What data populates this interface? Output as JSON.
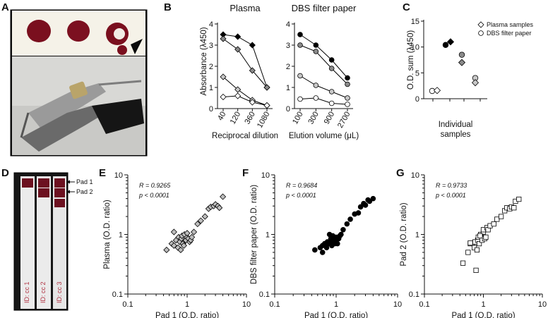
{
  "figure": {
    "panel_labels": [
      "A",
      "B",
      "C",
      "D",
      "E",
      "F",
      "G"
    ],
    "photo_a": {
      "description_icon": "dried-blood-spots-and-hole-punch-photo"
    },
    "photo_d": {
      "pad_labels": [
        "Pad 1",
        "Pad 2"
      ],
      "strip_labels": [
        "ID: cc 1",
        "ID: cc 2",
        "ID: cc 3"
      ]
    }
  },
  "chart_data": [
    {
      "id": "B-plasma",
      "type": "line",
      "title": "Plasma",
      "xlabel": "Reciprocal dilution",
      "ylabel": "Absorbance (λ450)",
      "categories": [
        "40",
        "120",
        "360",
        "1080"
      ],
      "ylim": [
        0,
        4
      ],
      "yticks": [
        "0",
        "1",
        "2",
        "3",
        "4"
      ],
      "series": [
        {
          "name": "black",
          "marker": "diamond",
          "color": "#000000",
          "values": [
            3.5,
            3.4,
            3.0,
            1.0
          ]
        },
        {
          "name": "dark grey",
          "marker": "diamond",
          "color": "#8a8a8a",
          "values": [
            3.3,
            2.8,
            1.8,
            1.0
          ]
        },
        {
          "name": "light grey",
          "marker": "diamond",
          "color": "#c8c8c8",
          "values": [
            1.5,
            0.9,
            0.4,
            0.15
          ]
        },
        {
          "name": "white",
          "marker": "diamond",
          "color": "#ffffff",
          "values": [
            0.55,
            0.6,
            0.3,
            0.15
          ]
        }
      ]
    },
    {
      "id": "B-dbs",
      "type": "line",
      "title": "DBS filter paper",
      "xlabel": "Elution volume (μL)",
      "ylabel": "",
      "categories": [
        "100",
        "300",
        "900",
        "2700"
      ],
      "ylim": [
        0,
        4
      ],
      "yticks": [
        "0",
        "1",
        "2",
        "3",
        "4"
      ],
      "series": [
        {
          "name": "black",
          "marker": "circle",
          "color": "#000000",
          "values": [
            3.5,
            3.0,
            2.3,
            1.45
          ]
        },
        {
          "name": "dark grey",
          "marker": "circle",
          "color": "#8a8a8a",
          "values": [
            3.0,
            2.7,
            1.9,
            1.15
          ]
        },
        {
          "name": "light grey",
          "marker": "circle",
          "color": "#c8c8c8",
          "values": [
            1.55,
            1.1,
            0.8,
            0.5
          ]
        },
        {
          "name": "white",
          "marker": "circle",
          "color": "#ffffff",
          "values": [
            0.45,
            0.5,
            0.25,
            0.2
          ]
        }
      ]
    },
    {
      "id": "C",
      "type": "scatter",
      "xlabel": "Individual samples",
      "ylabel": "O.D. sum (λ450)",
      "ylim": [
        0,
        15
      ],
      "yticks": [
        "0",
        "5",
        "10",
        "15"
      ],
      "legend": [
        "Plasma samples",
        "DBS filter paper"
      ],
      "samples": [
        {
          "sample": 1,
          "color": "#ffffff",
          "plasma": 1.6,
          "dbs": 1.5
        },
        {
          "sample": 2,
          "color": "#000000",
          "plasma": 11.0,
          "dbs": 10.4
        },
        {
          "sample": 3,
          "color": "#8a8a8a",
          "plasma": 7.0,
          "dbs": 8.5
        },
        {
          "sample": 4,
          "color": "#c8c8c8",
          "plasma": 3.1,
          "dbs": 4.0
        }
      ]
    },
    {
      "id": "E",
      "type": "scatter",
      "xscale": "log",
      "yscale": "log",
      "xlim": [
        0.1,
        10
      ],
      "ylim": [
        0.1,
        10
      ],
      "xticks": [
        "0.1",
        "1",
        "10"
      ],
      "yticks": [
        "0.1",
        "1",
        "10"
      ],
      "xlabel": "Pad 1 (O.D. ratio)",
      "ylabel": "Plasma (O.D. ratio)",
      "r_text": "R = 0.9265",
      "p_text": "p < 0.0001",
      "marker": "diamond",
      "color": "#bdbdbd",
      "x": [
        0.45,
        0.55,
        0.6,
        0.65,
        0.7,
        0.72,
        0.75,
        0.8,
        0.82,
        0.85,
        0.9,
        0.95,
        1.0,
        1.0,
        1.05,
        1.1,
        1.15,
        1.2,
        1.3,
        1.5,
        1.7,
        2.0,
        2.3,
        2.5,
        2.8,
        3.0,
        3.3,
        3.5,
        4.0,
        0.6,
        0.78,
        0.88
      ],
      "y": [
        0.55,
        0.7,
        0.65,
        0.8,
        0.6,
        0.9,
        0.75,
        0.85,
        0.95,
        0.7,
        1.0,
        0.8,
        0.9,
        1.05,
        0.85,
        0.75,
        0.8,
        0.9,
        1.1,
        1.5,
        1.7,
        2.0,
        2.7,
        2.9,
        3.0,
        3.2,
        3.0,
        2.8,
        4.3,
        1.1,
        0.55,
        0.65
      ]
    },
    {
      "id": "F",
      "type": "scatter",
      "xscale": "log",
      "yscale": "log",
      "xlim": [
        0.1,
        10
      ],
      "ylim": [
        0.1,
        10
      ],
      "xticks": [
        "0.1",
        "1",
        "10"
      ],
      "yticks": [
        "0.1",
        "1",
        "10"
      ],
      "xlabel": "Pad 1 (O.D. ratio)",
      "ylabel": "DBS filter paper (O.D. ratio)",
      "r_text": "R = 0.9684",
      "p_text": "p < 0.0001",
      "marker": "circle",
      "color": "#000000",
      "x": [
        0.45,
        0.55,
        0.6,
        0.65,
        0.7,
        0.72,
        0.75,
        0.8,
        0.82,
        0.85,
        0.9,
        0.95,
        1.0,
        1.0,
        1.05,
        1.1,
        1.15,
        1.2,
        1.3,
        1.5,
        1.7,
        2.0,
        2.3,
        2.5,
        2.8,
        3.0,
        3.3,
        3.5,
        4.0,
        0.6,
        0.78,
        0.88
      ],
      "y": [
        0.55,
        0.6,
        0.65,
        0.7,
        0.6,
        0.75,
        0.7,
        0.75,
        0.85,
        0.65,
        0.8,
        0.7,
        0.75,
        0.9,
        0.7,
        0.85,
        0.95,
        1.0,
        1.2,
        1.5,
        1.8,
        2.2,
        2.3,
        2.9,
        3.3,
        3.1,
        3.8,
        3.6,
        4.0,
        0.5,
        1.0,
        0.95
      ]
    },
    {
      "id": "G",
      "type": "scatter",
      "xscale": "log",
      "yscale": "log",
      "xlim": [
        0.1,
        10
      ],
      "ylim": [
        0.1,
        10
      ],
      "xticks": [
        "0.1",
        "1",
        "10"
      ],
      "yticks": [
        "0.1",
        "1",
        "10"
      ],
      "xlabel": "Pad 1 (O.D. ratio)",
      "ylabel": "Pad 2 (O.D. ratio)",
      "r_text": "R = 0.9733",
      "p_text": "p < 0.0001",
      "marker": "square",
      "color": "#ffffff",
      "x": [
        0.45,
        0.55,
        0.6,
        0.65,
        0.7,
        0.72,
        0.75,
        0.8,
        0.82,
        0.85,
        0.9,
        0.95,
        1.0,
        1.0,
        1.05,
        1.1,
        1.15,
        1.2,
        1.3,
        1.5,
        1.7,
        2.0,
        2.3,
        2.5,
        2.8,
        3.0,
        3.3,
        3.5,
        4.0,
        0.6,
        0.78,
        0.88
      ],
      "y": [
        0.33,
        0.5,
        0.7,
        0.72,
        0.6,
        0.75,
        0.25,
        0.8,
        0.9,
        0.7,
        1.0,
        0.8,
        1.1,
        1.2,
        0.85,
        0.9,
        1.3,
        1.2,
        1.4,
        1.5,
        1.8,
        2.0,
        2.5,
        2.8,
        2.7,
        2.9,
        2.8,
        3.6,
        3.9,
        0.72,
        0.55,
        0.95
      ]
    }
  ]
}
